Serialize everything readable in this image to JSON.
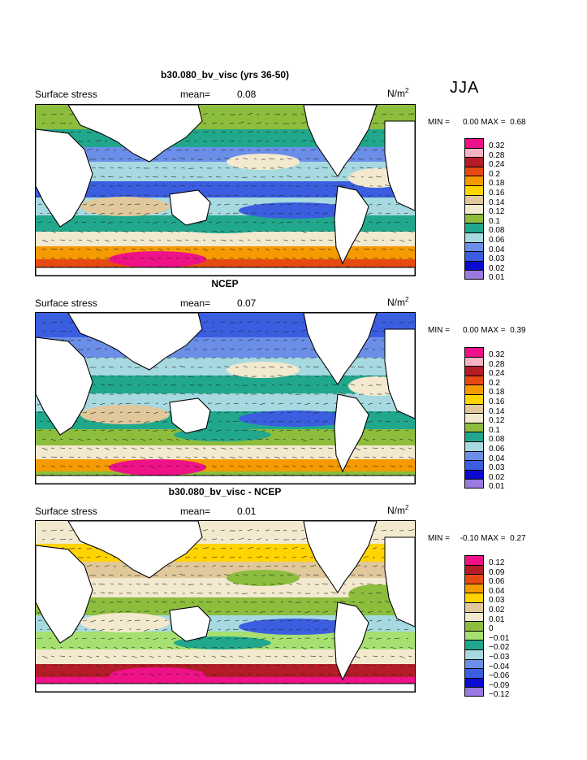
{
  "season": "JJA",
  "panels": [
    {
      "title": "b30.080_bv_visc (yrs 36-50)",
      "variable": "Surface stress",
      "mean_label": "mean=",
      "mean_value": "0.08",
      "units_base": "N/m",
      "units_exp": "2",
      "min_label": "MIN =",
      "min_value": "0.00",
      "max_label": "MAX =",
      "max_value": "0.68",
      "legend": [
        "0.32",
        "0.28",
        "0.24",
        "0.2",
        "0.18",
        "0.16",
        "0.14",
        "0.12",
        "0.1",
        "0.08",
        "0.06",
        "0.04",
        "0.03",
        "0.02",
        "0.01"
      ]
    },
    {
      "title": "NCEP",
      "variable": "Surface stress",
      "mean_label": "mean=",
      "mean_value": "0.07",
      "units_base": "N/m",
      "units_exp": "2",
      "min_label": "MIN =",
      "min_value": "0.00",
      "max_label": "MAX =",
      "max_value": "0.39",
      "legend": [
        "0.32",
        "0.28",
        "0.24",
        "0.2",
        "0.18",
        "0.16",
        "0.14",
        "0.12",
        "0.1",
        "0.08",
        "0.06",
        "0.04",
        "0.03",
        "0.02",
        "0.01"
      ]
    },
    {
      "title": "b30.080_bv_visc - NCEP",
      "variable": "Surface stress",
      "mean_label": "mean=",
      "mean_value": "0.01",
      "units_base": "N/m",
      "units_exp": "2",
      "min_label": "MIN =",
      "min_value": "-0.10",
      "max_label": "MAX =",
      "max_value": "0.27",
      "legend": [
        "0.12",
        "0.09",
        "0.06",
        "0.04",
        "0.03",
        "0.02",
        "0.01",
        "0",
        "−0.01",
        "−0.02",
        "−0.03",
        "−0.04",
        "−0.06",
        "−0.09",
        "−0.12"
      ]
    }
  ],
  "colors": {
    "abs_scale": [
      "#ee1188",
      "#f7b3c4",
      "#b41c28",
      "#e64a12",
      "#f59a00",
      "#ffd400",
      "#e0c89a",
      "#f3e9cf",
      "#8cbd3c",
      "#21a88c",
      "#a6d9e0",
      "#6b8fe8",
      "#3b5ee0",
      "#0a0ad0",
      "#9a7ae0"
    ],
    "diff_scale": [
      "#ee1188",
      "#b41c28",
      "#e64a12",
      "#f59a00",
      "#ffd400",
      "#e0c89a",
      "#f3e9cf",
      "#8cbd3c",
      "#a6e070",
      "#21a88c",
      "#a6d9e0",
      "#6b8fe8",
      "#3b5ee0",
      "#0a0ad0",
      "#9a7ae0"
    ],
    "land": "#ffffff",
    "coast": "#000000"
  }
}
